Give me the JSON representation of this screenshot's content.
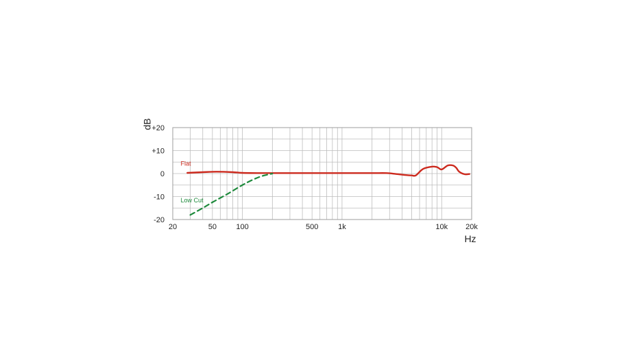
{
  "chart_data": {
    "type": "line",
    "title": "",
    "xlabel": "Hz",
    "ylabel": "dB",
    "x_scale": "log",
    "xlim": [
      20,
      20000
    ],
    "ylim": [
      -20,
      20
    ],
    "grid": true,
    "x_ticks": [
      {
        "value": 20,
        "label": "20"
      },
      {
        "value": 50,
        "label": "50"
      },
      {
        "value": 100,
        "label": "100"
      },
      {
        "value": 500,
        "label": "500"
      },
      {
        "value": 1000,
        "label": "1k"
      },
      {
        "value": 10000,
        "label": "10k"
      },
      {
        "value": 20000,
        "label": "20k"
      }
    ],
    "y_ticks": [
      {
        "value": 20,
        "label": "+20"
      },
      {
        "value": 10,
        "label": "+10"
      },
      {
        "value": 0,
        "label": "0"
      },
      {
        "value": -10,
        "label": "-10"
      },
      {
        "value": -20,
        "label": "-20"
      }
    ],
    "series": [
      {
        "name": "Flat",
        "color": "#cc2a1e",
        "style": "solid",
        "label_at": {
          "x": 24,
          "y": 3.5
        },
        "x": [
          28,
          40,
          55,
          80,
          100,
          150,
          200,
          500,
          1000,
          2000,
          2800,
          3500,
          4500,
          5000,
          5500,
          6500,
          8000,
          9000,
          10000,
          11500,
          13000,
          14000,
          15000,
          17000,
          19000
        ],
        "y": [
          0.3,
          0.6,
          0.8,
          0.6,
          0.3,
          0.2,
          0.2,
          0.2,
          0.2,
          0.2,
          0.2,
          -0.2,
          -0.7,
          -0.8,
          -0.8,
          2.0,
          3.0,
          2.8,
          1.8,
          3.5,
          3.5,
          2.5,
          0.8,
          -0.3,
          -0.2
        ]
      },
      {
        "name": "Low Cut",
        "color": "#1e8a3c",
        "style": "dashed",
        "label_at": {
          "x": 24,
          "y": -12.5
        },
        "x": [
          30,
          40,
          50,
          70,
          100,
          130,
          160,
          200
        ],
        "y": [
          -18,
          -15,
          -12.5,
          -9,
          -5,
          -2.5,
          -1,
          0
        ]
      }
    ]
  }
}
